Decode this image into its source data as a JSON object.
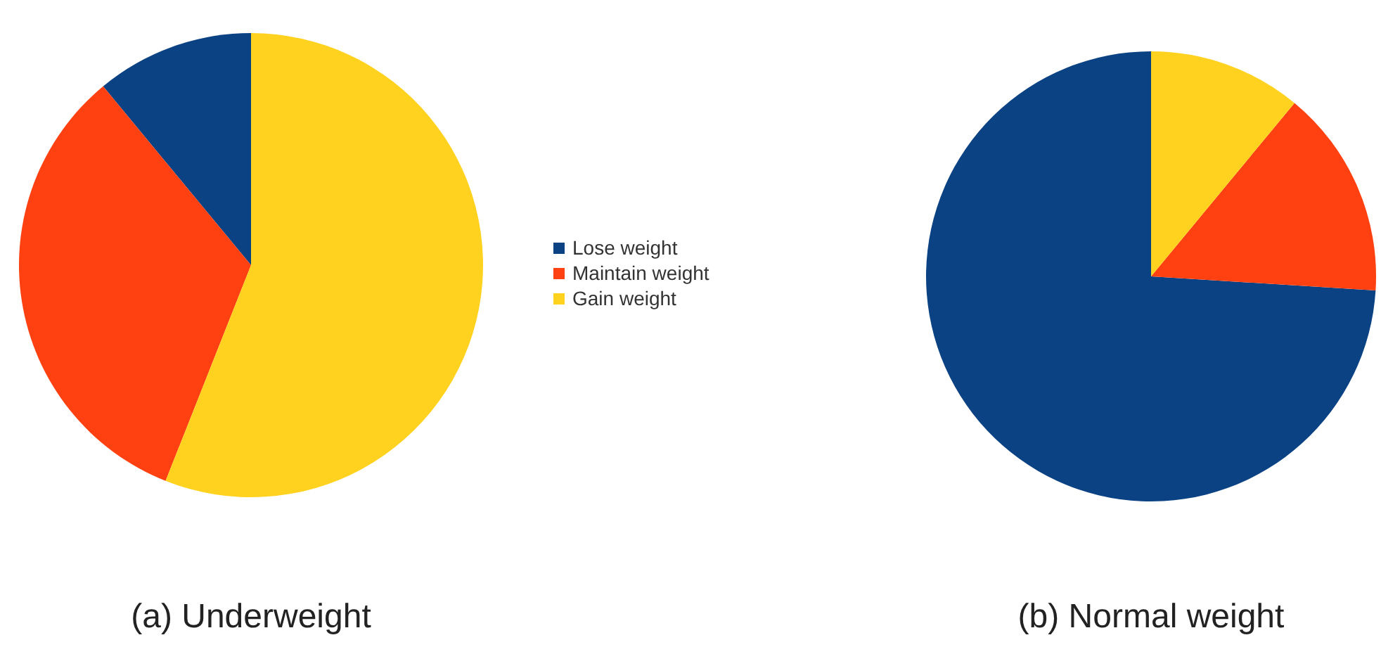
{
  "chart_data": [
    {
      "type": "pie",
      "title": "(a) Underweight",
      "categories": [
        "Lose weight",
        "Maintain weight",
        "Gain weight"
      ],
      "values": [
        11,
        33,
        56
      ],
      "colors": [
        "#0b4283",
        "#ff4010",
        "#ffd21f"
      ],
      "legend": "right"
    },
    {
      "type": "pie",
      "title": "(b) Normal weight",
      "categories": [
        null,
        null,
        null
      ],
      "values": [
        74,
        15,
        11
      ],
      "colors": [
        "#0b4283",
        "#ff4010",
        "#ffd21f"
      ]
    }
  ]
}
